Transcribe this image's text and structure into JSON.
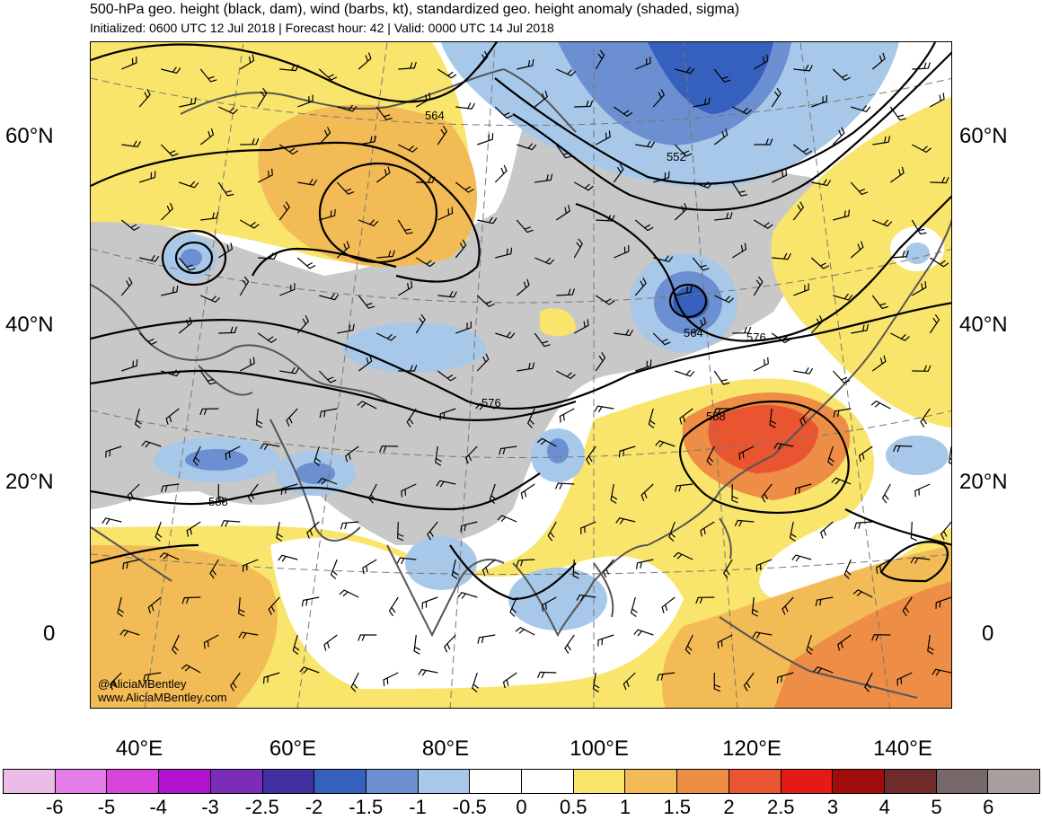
{
  "header": {
    "title": "500-hPa geo. height (black, dam), wind (barbs, kt), standardized geo. height anomaly (shaded, sigma)",
    "subtitle": "Initialized: 0600 UTC 12 Jul 2018 | Forecast hour: 42 | Valid: 0000 UTC 14 Jul 2018"
  },
  "map": {
    "lat_labels": [
      "60°N",
      "40°N",
      "20°N",
      "0"
    ],
    "lon_labels": [
      "40°E",
      "60°E",
      "80°E",
      "100°E",
      "120°E",
      "140°E"
    ],
    "contour_labels": [
      "564",
      "552",
      "564",
      "576",
      "576",
      "588",
      "588"
    ],
    "credit": {
      "handle": "@AliciaMBentley",
      "site": "www.AliciaMBentley.com"
    },
    "colors": {
      "land_border": "#555555",
      "contour": "#000000",
      "grid": "#777777"
    }
  },
  "colorbar": {
    "ticks": [
      "-6",
      "-5",
      "-4",
      "-3",
      "-2.5",
      "-2",
      "-1.5",
      "-1",
      "-0.5",
      "0",
      "0.5",
      "1",
      "1.5",
      "2",
      "2.5",
      "3",
      "4",
      "5",
      "6"
    ],
    "colors": [
      "#ebbde6",
      "#e47de8",
      "#d845dd",
      "#b012ce",
      "#7b2cb8",
      "#4230a3",
      "#3560bd",
      "#6b8fd0",
      "#a7c8e8",
      "#ffffff",
      "#ffffff",
      "#f9e56b",
      "#f3bb55",
      "#ee8d45",
      "#e95530",
      "#e51a15",
      "#a00d0b",
      "#6f2a2a",
      "#766868",
      "#a89e9e"
    ]
  }
}
